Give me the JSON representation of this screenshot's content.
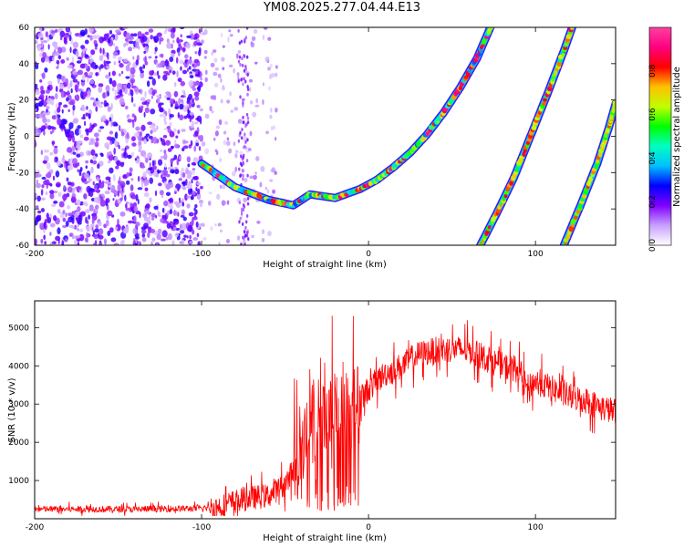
{
  "title": "YM08.2025.277.04.44.E13",
  "chart_data": [
    {
      "type": "heatmap",
      "title": "YM08.2025.277.04.44.E13",
      "xlabel": "Height of straight line (km)",
      "ylabel": "Frequency (Hz)",
      "xlim": [
        -200,
        148
      ],
      "ylim": [
        -60,
        60
      ],
      "xticks": [
        "-200",
        "-100",
        "0",
        "100"
      ],
      "yticks": [
        "60",
        "40",
        "20",
        "0",
        "-20",
        "-40",
        "-60"
      ],
      "colorbar": {
        "label": "Normalized spectral amplitude",
        "range": [
          0.0,
          1.0
        ],
        "ticks": [
          "0.0",
          "0.2",
          "0.4",
          "0.6",
          "0.8"
        ],
        "colormap": [
          "#ffffff",
          "#c8a0ff",
          "#8000ff",
          "#0000ff",
          "#00c0ff",
          "#00ffc0",
          "#00ff00",
          "#c0ff00",
          "#ffc000",
          "#ff0000",
          "#ff0080",
          "#ff40a0"
        ]
      },
      "noise_region": {
        "x_range": [
          -200,
          -100
        ],
        "y_range": [
          -60,
          60
        ],
        "amplitude": [
          0.05,
          0.25
        ]
      },
      "ridges": [
        {
          "name": "fundamental curve",
          "points": [
            [
              -100,
              -15
            ],
            [
              -80,
              -28
            ],
            [
              -60,
              -35
            ],
            [
              -45,
              -38
            ],
            [
              -35,
              -32
            ],
            [
              -20,
              -34
            ],
            [
              -5,
              -29
            ],
            [
              5,
              -24
            ],
            [
              15,
              -17
            ],
            [
              25,
              -9
            ],
            [
              35,
              1
            ],
            [
              45,
              13
            ],
            [
              55,
              27
            ],
            [
              65,
              43
            ],
            [
              73,
              60
            ]
          ],
          "amplitude": [
            0.3,
            0.95
          ]
        },
        {
          "name": "second branch",
          "points": [
            [
              67,
              -60
            ],
            [
              77,
              -42
            ],
            [
              87,
              -23
            ],
            [
              97,
              0
            ],
            [
              107,
              23
            ],
            [
              117,
              47
            ],
            [
              122,
              60
            ]
          ],
          "amplitude": [
            0.5,
            0.9
          ]
        },
        {
          "name": "third branch",
          "points": [
            [
              117,
              -60
            ],
            [
              127,
              -38
            ],
            [
              137,
              -15
            ],
            [
              144,
              5
            ],
            [
              148,
              18
            ]
          ],
          "amplitude": [
            0.5,
            0.8
          ]
        }
      ]
    },
    {
      "type": "line",
      "xlabel": "Height of straight line (km)",
      "ylabel": "SNR (10 * v/v)",
      "xlim": [
        -200,
        148
      ],
      "ylim": [
        0,
        5700
      ],
      "xticks": [
        "-200",
        "-100",
        "0",
        "100"
      ],
      "yticks": [
        "5000",
        "4000",
        "3000",
        "2000",
        "1000"
      ],
      "series": [
        {
          "name": "SNR",
          "color": "#ff0000",
          "x": [
            -200,
            -180,
            -160,
            -140,
            -120,
            -100,
            -90,
            -80,
            -70,
            -60,
            -50,
            -45,
            -40,
            -35,
            -30,
            -25,
            -20,
            -15,
            -10,
            -5,
            0,
            10,
            20,
            30,
            40,
            50,
            60,
            70,
            80,
            90,
            95,
            100,
            110,
            120,
            130,
            140,
            148
          ],
          "y": [
            250,
            250,
            250,
            250,
            260,
            270,
            300,
            450,
            550,
            600,
            900,
            1300,
            2000,
            2500,
            2600,
            2700,
            2800,
            3000,
            2900,
            3100,
            3400,
            3800,
            4000,
            4300,
            4400,
            4450,
            4400,
            4200,
            4000,
            3900,
            3400,
            3600,
            3400,
            3200,
            3100,
            2900,
            2800
          ]
        }
      ]
    }
  ]
}
